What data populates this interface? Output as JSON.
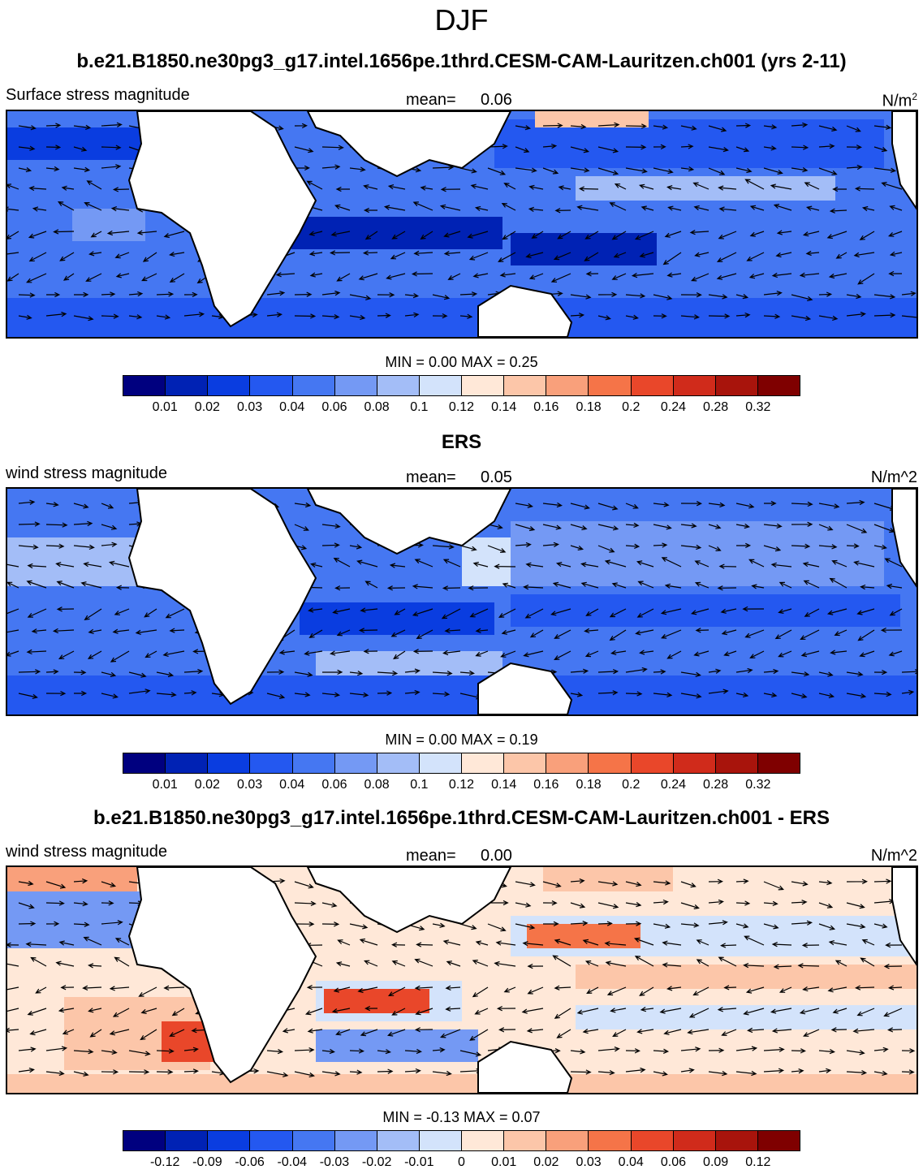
{
  "suptitle": "DJF",
  "panels": [
    {
      "id": "model",
      "title": "b.e21.B1850.ne30pg3_g17.intel.1656pe.1thrd.CESM-CAM-Lauritzen.ch001 (yrs 2-11)",
      "left_label": "Surface stress magnitude",
      "mean_label": "mean=",
      "mean_value": "0.06",
      "units_main": "N/m",
      "units_sup": "2",
      "min_label": "MIN =",
      "min_value": "0.00",
      "max_label": "MAX =",
      "max_value": "0.25",
      "colorbar": {
        "colors": [
          "#00007f",
          "#0022b4",
          "#0a3de0",
          "#2458f0",
          "#4577f2",
          "#7499f4",
          "#a3bdf7",
          "#d3e3fb",
          "#ffe8d8",
          "#fcc6a9",
          "#f9a07b",
          "#f57448",
          "#e9472a",
          "#d02b1b",
          "#a8140c",
          "#7f0000"
        ],
        "ticks": [
          "0.01",
          "0.02",
          "0.03",
          "0.04",
          "0.06",
          "0.08",
          "0.1",
          "0.12",
          "0.14",
          "0.16",
          "0.18",
          "0.2",
          "0.24",
          "0.28",
          "0.32"
        ]
      }
    },
    {
      "id": "obs",
      "title": "ERS",
      "left_label": "wind stress magnitude",
      "mean_label": "mean=",
      "mean_value": "0.05",
      "units_main": "N/m^2",
      "units_sup": "",
      "min_label": "MIN =",
      "min_value": "0.00",
      "max_label": "MAX =",
      "max_value": "0.19",
      "colorbar": {
        "colors": [
          "#00007f",
          "#0022b4",
          "#0a3de0",
          "#2458f0",
          "#4577f2",
          "#7499f4",
          "#a3bdf7",
          "#d3e3fb",
          "#ffe8d8",
          "#fcc6a9",
          "#f9a07b",
          "#f57448",
          "#e9472a",
          "#d02b1b",
          "#a8140c",
          "#7f0000"
        ],
        "ticks": [
          "0.01",
          "0.02",
          "0.03",
          "0.04",
          "0.06",
          "0.08",
          "0.1",
          "0.12",
          "0.14",
          "0.16",
          "0.18",
          "0.2",
          "0.24",
          "0.28",
          "0.32"
        ]
      }
    },
    {
      "id": "diff",
      "title": "b.e21.B1850.ne30pg3_g17.intel.1656pe.1thrd.CESM-CAM-Lauritzen.ch001 - ERS",
      "left_label": "wind stress magnitude",
      "mean_label": "mean=",
      "mean_value": "0.00",
      "units_main": "N/m^2",
      "units_sup": "",
      "min_label": "MIN =",
      "min_value": "-0.13",
      "max_label": "MAX =",
      "max_value": "0.07",
      "colorbar": {
        "colors": [
          "#00007f",
          "#0022b4",
          "#0a3de0",
          "#2458f0",
          "#4577f2",
          "#7499f4",
          "#a3bdf7",
          "#d3e3fb",
          "#ffe8d8",
          "#fcc6a9",
          "#f9a07b",
          "#f57448",
          "#e9472a",
          "#d02b1b",
          "#a8140c",
          "#7f0000"
        ],
        "ticks": [
          "-0.12",
          "-0.09",
          "-0.06",
          "-0.04",
          "-0.03",
          "-0.02",
          "-0.01",
          "0",
          "0.01",
          "0.02",
          "0.03",
          "0.04",
          "0.06",
          "0.09",
          "0.12"
        ]
      }
    }
  ]
}
